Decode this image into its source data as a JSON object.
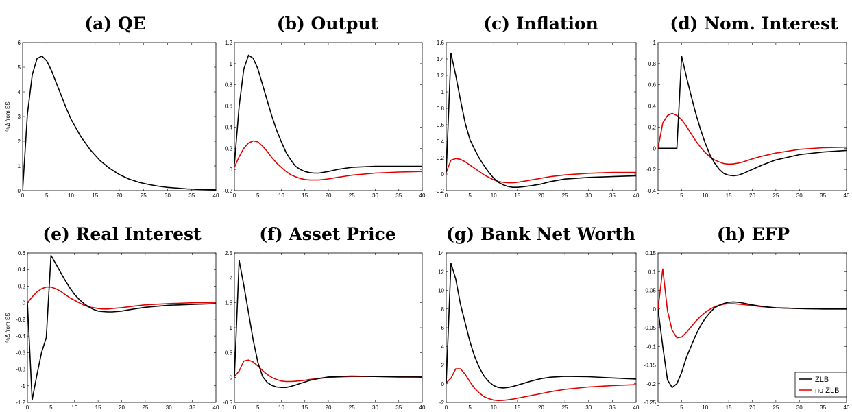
{
  "figure": {
    "legend": {
      "placement": "bottom-right",
      "entries": [
        "ZLB",
        "no ZLB"
      ]
    },
    "colors": {
      "ZLB": "#000000",
      "no ZLB": "#e00000"
    }
  },
  "chart_data": [
    {
      "type": "line",
      "title": "(a) QE",
      "ylabel": "%Δ from SS",
      "xlim": [
        0,
        40
      ],
      "ylim": [
        0,
        6
      ],
      "xticks": [
        0,
        5,
        10,
        15,
        20,
        25,
        30,
        35,
        40
      ],
      "yticks": [
        0,
        1,
        2,
        3,
        4,
        5,
        6
      ],
      "grid": false,
      "series": [
        {
          "name": "ZLB",
          "x": [
            0,
            1,
            2,
            3,
            4,
            5,
            6,
            7,
            8,
            9,
            10,
            12,
            14,
            16,
            18,
            20,
            22,
            24,
            26,
            28,
            30,
            32,
            34,
            36,
            38,
            40
          ],
          "y": [
            0,
            3.1,
            4.7,
            5.35,
            5.45,
            5.25,
            4.85,
            4.35,
            3.85,
            3.35,
            2.9,
            2.2,
            1.65,
            1.22,
            0.9,
            0.65,
            0.47,
            0.34,
            0.25,
            0.18,
            0.13,
            0.1,
            0.07,
            0.05,
            0.04,
            0.03
          ]
        }
      ]
    },
    {
      "type": "line",
      "title": "(b) Output",
      "ylabel": "",
      "xlim": [
        0,
        40
      ],
      "ylim": [
        -0.2,
        1.2
      ],
      "xticks": [
        0,
        5,
        10,
        15,
        20,
        25,
        30,
        35,
        40
      ],
      "yticks": [
        -0.2,
        0,
        0.2,
        0.4,
        0.6,
        0.8,
        1,
        1.2
      ],
      "grid": false,
      "series": [
        {
          "name": "ZLB",
          "x": [
            0,
            1,
            2,
            3,
            4,
            5,
            6,
            7,
            8,
            9,
            10,
            11,
            12,
            13,
            14,
            15,
            16,
            17,
            18,
            20,
            22,
            25,
            30,
            35,
            40
          ],
          "y": [
            0.05,
            0.6,
            0.95,
            1.08,
            1.05,
            0.95,
            0.8,
            0.65,
            0.5,
            0.37,
            0.26,
            0.16,
            0.09,
            0.03,
            0,
            -0.02,
            -0.03,
            -0.035,
            -0.035,
            -0.02,
            0,
            0.02,
            0.03,
            0.03,
            0.03
          ]
        },
        {
          "name": "no ZLB",
          "x": [
            0,
            1,
            2,
            3,
            4,
            5,
            6,
            7,
            8,
            9,
            10,
            11,
            12,
            13,
            14,
            15,
            16,
            17,
            18,
            20,
            22,
            25,
            30,
            35,
            40
          ],
          "y": [
            0.02,
            0.12,
            0.2,
            0.25,
            0.27,
            0.26,
            0.22,
            0.17,
            0.11,
            0.06,
            0.02,
            -0.02,
            -0.05,
            -0.07,
            -0.085,
            -0.095,
            -0.1,
            -0.1,
            -0.1,
            -0.09,
            -0.075,
            -0.055,
            -0.035,
            -0.025,
            -0.02
          ]
        }
      ]
    },
    {
      "type": "line",
      "title": "(c) Inflation",
      "ylabel": "",
      "xlim": [
        0,
        40
      ],
      "ylim": [
        -0.2,
        1.6
      ],
      "xticks": [
        0,
        5,
        10,
        15,
        20,
        25,
        30,
        35,
        40
      ],
      "yticks": [
        -0.2,
        0,
        0.2,
        0.4,
        0.6,
        0.8,
        1,
        1.2,
        1.4,
        1.6
      ],
      "grid": false,
      "series": [
        {
          "name": "ZLB",
          "x": [
            0,
            1,
            2,
            3,
            4,
            5,
            6,
            7,
            8,
            9,
            10,
            11,
            12,
            13,
            14,
            15,
            16,
            18,
            20,
            22,
            25,
            30,
            35,
            40
          ],
          "y": [
            0.02,
            1.47,
            1.2,
            0.9,
            0.62,
            0.42,
            0.3,
            0.19,
            0.1,
            0.02,
            -0.05,
            -0.1,
            -0.13,
            -0.15,
            -0.16,
            -0.16,
            -0.155,
            -0.14,
            -0.12,
            -0.09,
            -0.06,
            -0.04,
            -0.03,
            -0.02
          ]
        },
        {
          "name": "no ZLB",
          "x": [
            0,
            1,
            2,
            3,
            4,
            5,
            6,
            7,
            8,
            9,
            10,
            11,
            12,
            13,
            14,
            15,
            16,
            18,
            20,
            22,
            25,
            30,
            35,
            40
          ],
          "y": [
            0.02,
            0.17,
            0.19,
            0.18,
            0.15,
            0.11,
            0.07,
            0.03,
            -0.01,
            -0.04,
            -0.07,
            -0.09,
            -0.1,
            -0.105,
            -0.105,
            -0.1,
            -0.09,
            -0.07,
            -0.05,
            -0.03,
            -0.01,
            0.01,
            0.02,
            0.02
          ]
        }
      ]
    },
    {
      "type": "line",
      "title": "(d) Nom. Interest",
      "ylabel": "",
      "xlim": [
        0,
        40
      ],
      "ylim": [
        -0.4,
        1
      ],
      "xticks": [
        0,
        5,
        10,
        15,
        20,
        25,
        30,
        35,
        40
      ],
      "yticks": [
        -0.4,
        -0.2,
        0,
        0.2,
        0.4,
        0.6,
        0.8,
        1
      ],
      "grid": false,
      "series": [
        {
          "name": "ZLB",
          "x": [
            0,
            1,
            2,
            3,
            4,
            5,
            6,
            7,
            8,
            9,
            10,
            11,
            12,
            13,
            14,
            15,
            16,
            17,
            18,
            20,
            22,
            25,
            30,
            35,
            40
          ],
          "y": [
            0,
            0,
            0,
            0,
            0,
            0.87,
            0.68,
            0.5,
            0.33,
            0.18,
            0.05,
            -0.06,
            -0.14,
            -0.2,
            -0.24,
            -0.255,
            -0.26,
            -0.255,
            -0.24,
            -0.2,
            -0.16,
            -0.11,
            -0.06,
            -0.035,
            -0.02
          ]
        },
        {
          "name": "no ZLB",
          "x": [
            0,
            1,
            2,
            3,
            4,
            5,
            6,
            7,
            8,
            9,
            10,
            11,
            12,
            13,
            14,
            15,
            16,
            17,
            18,
            20,
            22,
            25,
            30,
            35,
            40
          ],
          "y": [
            0,
            0.24,
            0.31,
            0.33,
            0.31,
            0.27,
            0.21,
            0.14,
            0.07,
            0.01,
            -0.04,
            -0.08,
            -0.11,
            -0.13,
            -0.145,
            -0.15,
            -0.148,
            -0.14,
            -0.13,
            -0.1,
            -0.075,
            -0.045,
            -0.01,
            0.005,
            0.01
          ]
        }
      ]
    },
    {
      "type": "line",
      "title": "(e) Real Interest",
      "ylabel": "%Δ from SS",
      "xlim": [
        0,
        40
      ],
      "ylim": [
        -1.2,
        0.6
      ],
      "xticks": [
        0,
        5,
        10,
        15,
        20,
        25,
        30,
        35,
        40
      ],
      "yticks": [
        -1.2,
        -1,
        -0.8,
        -0.6,
        -0.4,
        -0.2,
        0,
        0.2,
        0.4,
        0.6
      ],
      "grid": false,
      "series": [
        {
          "name": "ZLB",
          "x": [
            0,
            1,
            2,
            3,
            4,
            5,
            6,
            7,
            8,
            9,
            10,
            11,
            12,
            13,
            14,
            15,
            16,
            17,
            18,
            20,
            22,
            25,
            30,
            35,
            40
          ],
          "y": [
            0,
            -1.17,
            -0.87,
            -0.6,
            -0.42,
            0.57,
            0.47,
            0.37,
            0.27,
            0.18,
            0.1,
            0.04,
            -0.01,
            -0.05,
            -0.08,
            -0.1,
            -0.105,
            -0.11,
            -0.11,
            -0.1,
            -0.08,
            -0.055,
            -0.03,
            -0.02,
            -0.01
          ]
        },
        {
          "name": "no ZLB",
          "x": [
            0,
            1,
            2,
            3,
            4,
            5,
            6,
            7,
            8,
            9,
            10,
            11,
            12,
            13,
            14,
            15,
            16,
            17,
            18,
            20,
            22,
            25,
            30,
            35,
            40
          ],
          "y": [
            0,
            0.07,
            0.13,
            0.17,
            0.19,
            0.19,
            0.17,
            0.14,
            0.1,
            0.06,
            0.03,
            0,
            -0.03,
            -0.05,
            -0.06,
            -0.07,
            -0.075,
            -0.075,
            -0.07,
            -0.06,
            -0.045,
            -0.025,
            -0.01,
            0,
            0.005
          ]
        }
      ]
    },
    {
      "type": "line",
      "title": "(f) Asset Price",
      "ylabel": "",
      "xlim": [
        0,
        40
      ],
      "ylim": [
        -0.5,
        2.5
      ],
      "xticks": [
        0,
        5,
        10,
        15,
        20,
        25,
        30,
        35,
        40
      ],
      "yticks": [
        -0.5,
        0,
        0.5,
        1,
        1.5,
        2,
        2.5
      ],
      "grid": false,
      "series": [
        {
          "name": "ZLB",
          "x": [
            0,
            1,
            2,
            3,
            4,
            5,
            6,
            7,
            8,
            9,
            10,
            11,
            12,
            13,
            14,
            15,
            16,
            18,
            20,
            22,
            25,
            30,
            35,
            40
          ],
          "y": [
            0.02,
            2.35,
            1.85,
            1.3,
            0.75,
            0.3,
            0.02,
            -0.1,
            -0.16,
            -0.19,
            -0.2,
            -0.2,
            -0.18,
            -0.15,
            -0.12,
            -0.09,
            -0.06,
            -0.02,
            0.01,
            0.02,
            0.03,
            0.02,
            0.01,
            0.01
          ]
        },
        {
          "name": "no ZLB",
          "x": [
            0,
            1,
            2,
            3,
            4,
            5,
            6,
            7,
            8,
            9,
            10,
            11,
            12,
            13,
            14,
            15,
            16,
            18,
            20,
            22,
            25,
            30,
            35,
            40
          ],
          "y": [
            0.02,
            0.13,
            0.33,
            0.35,
            0.31,
            0.23,
            0.14,
            0.06,
            0,
            -0.04,
            -0.07,
            -0.08,
            -0.08,
            -0.075,
            -0.065,
            -0.055,
            -0.04,
            -0.02,
            0,
            0.01,
            0.02,
            0.02,
            0.015,
            0.01
          ]
        }
      ]
    },
    {
      "type": "line",
      "title": "(g) Bank Net Worth",
      "ylabel": "",
      "xlim": [
        0,
        40
      ],
      "ylim": [
        -2,
        14
      ],
      "xticks": [
        0,
        5,
        10,
        15,
        20,
        25,
        30,
        35,
        40
      ],
      "yticks": [
        -2,
        0,
        2,
        4,
        6,
        8,
        10,
        12,
        14
      ],
      "grid": false,
      "series": [
        {
          "name": "ZLB",
          "x": [
            0,
            1,
            2,
            3,
            4,
            5,
            6,
            7,
            8,
            9,
            10,
            11,
            12,
            13,
            14,
            15,
            16,
            18,
            20,
            22,
            25,
            30,
            35,
            40
          ],
          "y": [
            0.1,
            12.9,
            11.2,
            8.5,
            6.5,
            4.5,
            2.9,
            1.7,
            0.8,
            0.2,
            -0.2,
            -0.4,
            -0.45,
            -0.4,
            -0.3,
            -0.15,
            0,
            0.3,
            0.55,
            0.7,
            0.8,
            0.75,
            0.62,
            0.5
          ]
        },
        {
          "name": "no ZLB",
          "x": [
            0,
            1,
            2,
            3,
            4,
            5,
            6,
            7,
            8,
            9,
            10,
            11,
            12,
            13,
            14,
            15,
            16,
            18,
            20,
            22,
            25,
            30,
            35,
            40
          ],
          "y": [
            0.1,
            0.6,
            1.6,
            1.6,
            1.0,
            0.2,
            -0.5,
            -1.0,
            -1.4,
            -1.6,
            -1.75,
            -1.8,
            -1.78,
            -1.72,
            -1.65,
            -1.55,
            -1.45,
            -1.25,
            -1.05,
            -0.85,
            -0.6,
            -0.35,
            -0.2,
            -0.1
          ]
        }
      ]
    },
    {
      "type": "line",
      "title": "(h) EFP",
      "ylabel": "",
      "xlim": [
        0,
        40
      ],
      "ylim": [
        -0.25,
        0.15
      ],
      "xticks": [
        0,
        5,
        10,
        15,
        20,
        25,
        30,
        35,
        40
      ],
      "yticks": [
        -0.25,
        -0.2,
        -0.15,
        -0.1,
        -0.05,
        0,
        0.05,
        0.1,
        0.15
      ],
      "grid": false,
      "series": [
        {
          "name": "ZLB",
          "x": [
            0,
            1,
            2,
            3,
            4,
            5,
            6,
            7,
            8,
            9,
            10,
            11,
            12,
            13,
            14,
            15,
            16,
            17,
            18,
            20,
            22,
            25,
            30,
            35,
            40
          ],
          "y": [
            0,
            -0.1,
            -0.19,
            -0.21,
            -0.2,
            -0.17,
            -0.13,
            -0.1,
            -0.07,
            -0.045,
            -0.025,
            -0.01,
            0.003,
            0.01,
            0.015,
            0.018,
            0.019,
            0.018,
            0.016,
            0.011,
            0.007,
            0.003,
            0.001,
            0,
            0
          ]
        },
        {
          "name": "no ZLB",
          "x": [
            0,
            1,
            2,
            3,
            4,
            5,
            6,
            7,
            8,
            9,
            10,
            11,
            12,
            13,
            14,
            15,
            16,
            17,
            18,
            20,
            22,
            25,
            30,
            35,
            40
          ],
          "y": [
            0,
            0.107,
            -0.005,
            -0.057,
            -0.077,
            -0.075,
            -0.063,
            -0.048,
            -0.033,
            -0.02,
            -0.009,
            -0.001,
            0.006,
            0.01,
            0.013,
            0.014,
            0.014,
            0.013,
            0.012,
            0.009,
            0.006,
            0.003,
            0.001,
            0,
            0
          ]
        }
      ]
    }
  ]
}
